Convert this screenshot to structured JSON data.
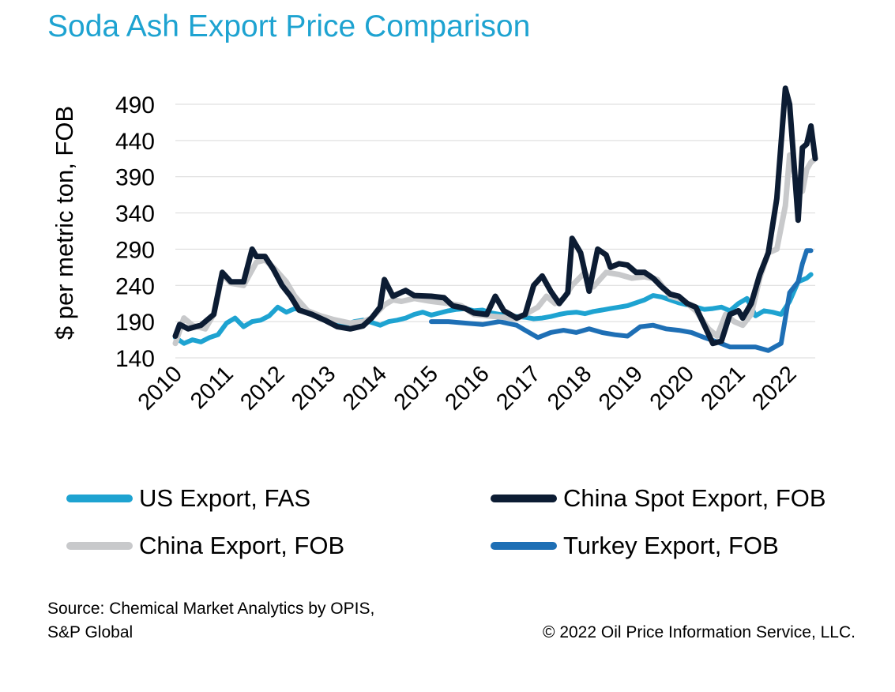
{
  "chart_data": {
    "type": "line",
    "title": "Soda Ash Export Price Comparison",
    "ylabel": "$ per metric ton, FOB",
    "xlabel": "",
    "ylim": [
      140,
      510
    ],
    "y_ticks": [
      140,
      190,
      240,
      290,
      340,
      390,
      440,
      490
    ],
    "xlim": [
      "2010-01",
      "2022-07"
    ],
    "x_tick_labels": [
      "2010",
      "2011",
      "2012",
      "2013",
      "2014",
      "2015",
      "2016",
      "2017",
      "2018",
      "2019",
      "2020",
      "2021",
      "2022"
    ],
    "grid": "horizontal",
    "legend_position": "bottom",
    "series": [
      {
        "name": "US Export, FAS",
        "color": "#1ea3d1",
        "points": [
          [
            "2010-01",
            168
          ],
          [
            "2010-03",
            160
          ],
          [
            "2010-05",
            165
          ],
          [
            "2010-07",
            162
          ],
          [
            "2010-09",
            168
          ],
          [
            "2010-11",
            172
          ],
          [
            "2011-01",
            188
          ],
          [
            "2011-03",
            195
          ],
          [
            "2011-05",
            183
          ],
          [
            "2011-07",
            190
          ],
          [
            "2011-09",
            192
          ],
          [
            "2011-11",
            198
          ],
          [
            "2012-01",
            210
          ],
          [
            "2012-03",
            203
          ],
          [
            "2012-05",
            208
          ],
          [
            "2012-07",
            205
          ],
          [
            "2012-09",
            202
          ],
          [
            "2012-11",
            198
          ],
          [
            "2013-01",
            193
          ],
          [
            "2013-03",
            190
          ],
          [
            "2013-05",
            186
          ],
          [
            "2013-07",
            190
          ],
          [
            "2013-09",
            192
          ],
          [
            "2013-11",
            189
          ],
          [
            "2014-01",
            185
          ],
          [
            "2014-03",
            190
          ],
          [
            "2014-05",
            192
          ],
          [
            "2014-07",
            195
          ],
          [
            "2014-09",
            200
          ],
          [
            "2014-11",
            203
          ],
          [
            "2015-01",
            199
          ],
          [
            "2015-03",
            202
          ],
          [
            "2015-05",
            205
          ],
          [
            "2015-07",
            207
          ],
          [
            "2015-09",
            208
          ],
          [
            "2015-11",
            205
          ],
          [
            "2016-01",
            206
          ],
          [
            "2016-03",
            202
          ],
          [
            "2016-05",
            200
          ],
          [
            "2016-07",
            198
          ],
          [
            "2016-09",
            197
          ],
          [
            "2016-11",
            196
          ],
          [
            "2017-01",
            194
          ],
          [
            "2017-03",
            195
          ],
          [
            "2017-05",
            197
          ],
          [
            "2017-07",
            200
          ],
          [
            "2017-09",
            202
          ],
          [
            "2017-11",
            203
          ],
          [
            "2018-01",
            201
          ],
          [
            "2018-03",
            204
          ],
          [
            "2018-05",
            206
          ],
          [
            "2018-07",
            208
          ],
          [
            "2018-09",
            210
          ],
          [
            "2018-11",
            212
          ],
          [
            "2019-01",
            216
          ],
          [
            "2019-03",
            220
          ],
          [
            "2019-05",
            226
          ],
          [
            "2019-07",
            224
          ],
          [
            "2019-09",
            220
          ],
          [
            "2019-11",
            216
          ],
          [
            "2020-01",
            213
          ],
          [
            "2020-03",
            210
          ],
          [
            "2020-05",
            207
          ],
          [
            "2020-07",
            208
          ],
          [
            "2020-09",
            210
          ],
          [
            "2020-11",
            205
          ],
          [
            "2021-01",
            215
          ],
          [
            "2021-03",
            222
          ],
          [
            "2021-05",
            198
          ],
          [
            "2021-07",
            205
          ],
          [
            "2021-09",
            203
          ],
          [
            "2021-11",
            200
          ],
          [
            "2022-01",
            218
          ],
          [
            "2022-03",
            245
          ],
          [
            "2022-05",
            250
          ],
          [
            "2022-06",
            255
          ]
        ]
      },
      {
        "name": "China Spot Export, FOB",
        "color": "#0c1c33",
        "points": [
          [
            "2010-01",
            170
          ],
          [
            "2010-02",
            186
          ],
          [
            "2010-04",
            180
          ],
          [
            "2010-07",
            185
          ],
          [
            "2010-10",
            200
          ],
          [
            "2010-12",
            258
          ],
          [
            "2011-02",
            245
          ],
          [
            "2011-05",
            245
          ],
          [
            "2011-07",
            290
          ],
          [
            "2011-08",
            280
          ],
          [
            "2011-10",
            280
          ],
          [
            "2011-12",
            262
          ],
          [
            "2012-02",
            240
          ],
          [
            "2012-04",
            225
          ],
          [
            "2012-06",
            206
          ],
          [
            "2012-09",
            200
          ],
          [
            "2012-12",
            192
          ],
          [
            "2013-03",
            183
          ],
          [
            "2013-06",
            180
          ],
          [
            "2013-09",
            184
          ],
          [
            "2013-11",
            195
          ],
          [
            "2014-01",
            210
          ],
          [
            "2014-02",
            248
          ],
          [
            "2014-04",
            225
          ],
          [
            "2014-07",
            233
          ],
          [
            "2014-09",
            226
          ],
          [
            "2015-01",
            225
          ],
          [
            "2015-04",
            223
          ],
          [
            "2015-06",
            212
          ],
          [
            "2015-09",
            208
          ],
          [
            "2015-11",
            202
          ],
          [
            "2016-02",
            200
          ],
          [
            "2016-04",
            225
          ],
          [
            "2016-06",
            205
          ],
          [
            "2016-09",
            195
          ],
          [
            "2016-11",
            200
          ],
          [
            "2017-01",
            240
          ],
          [
            "2017-03",
            253
          ],
          [
            "2017-05",
            232
          ],
          [
            "2017-07",
            215
          ],
          [
            "2017-09",
            230
          ],
          [
            "2017-10",
            305
          ],
          [
            "2017-12",
            285
          ],
          [
            "2018-02",
            232
          ],
          [
            "2018-04",
            290
          ],
          [
            "2018-06",
            282
          ],
          [
            "2018-07",
            265
          ],
          [
            "2018-09",
            270
          ],
          [
            "2018-11",
            268
          ],
          [
            "2019-01",
            258
          ],
          [
            "2019-03",
            258
          ],
          [
            "2019-05",
            250
          ],
          [
            "2019-07",
            238
          ],
          [
            "2019-09",
            228
          ],
          [
            "2019-11",
            225
          ],
          [
            "2020-01",
            215
          ],
          [
            "2020-03",
            210
          ],
          [
            "2020-05",
            185
          ],
          [
            "2020-07",
            160
          ],
          [
            "2020-09",
            163
          ],
          [
            "2020-11",
            200
          ],
          [
            "2021-01",
            205
          ],
          [
            "2021-02",
            195
          ],
          [
            "2021-04",
            215
          ],
          [
            "2021-06",
            255
          ],
          [
            "2021-08",
            285
          ],
          [
            "2021-10",
            360
          ],
          [
            "2021-12",
            512
          ],
          [
            "2022-01",
            490
          ],
          [
            "2022-03",
            330
          ],
          [
            "2022-04",
            430
          ],
          [
            "2022-05",
            435
          ],
          [
            "2022-06",
            460
          ],
          [
            "2022-07",
            415
          ]
        ]
      },
      {
        "name": "China Export, FOB",
        "color": "#c8c9cb",
        "points": [
          [
            "2010-01",
            160
          ],
          [
            "2010-03",
            195
          ],
          [
            "2010-05",
            185
          ],
          [
            "2010-08",
            180
          ],
          [
            "2010-10",
            200
          ],
          [
            "2010-12",
            255
          ],
          [
            "2011-02",
            243
          ],
          [
            "2011-05",
            240
          ],
          [
            "2011-08",
            272
          ],
          [
            "2011-10",
            275
          ],
          [
            "2011-12",
            265
          ],
          [
            "2012-03",
            245
          ],
          [
            "2012-05",
            225
          ],
          [
            "2012-08",
            205
          ],
          [
            "2012-11",
            198
          ],
          [
            "2013-02",
            193
          ],
          [
            "2013-06",
            188
          ],
          [
            "2013-09",
            190
          ],
          [
            "2013-11",
            195
          ],
          [
            "2014-02",
            213
          ],
          [
            "2014-04",
            220
          ],
          [
            "2014-06",
            218
          ],
          [
            "2014-09",
            222
          ],
          [
            "2015-01",
            218
          ],
          [
            "2015-05",
            215
          ],
          [
            "2015-08",
            212
          ],
          [
            "2015-11",
            200
          ],
          [
            "2016-02",
            198
          ],
          [
            "2016-06",
            196
          ],
          [
            "2016-09",
            194
          ],
          [
            "2016-11",
            200
          ],
          [
            "2017-02",
            210
          ],
          [
            "2017-04",
            225
          ],
          [
            "2017-06",
            215
          ],
          [
            "2017-08",
            222
          ],
          [
            "2017-10",
            240
          ],
          [
            "2018-01",
            258
          ],
          [
            "2018-03",
            238
          ],
          [
            "2018-06",
            258
          ],
          [
            "2018-09",
            255
          ],
          [
            "2018-12",
            250
          ],
          [
            "2019-03",
            252
          ],
          [
            "2019-06",
            248
          ],
          [
            "2019-09",
            225
          ],
          [
            "2019-12",
            220
          ],
          [
            "2020-03",
            205
          ],
          [
            "2020-06",
            180
          ],
          [
            "2020-08",
            170
          ],
          [
            "2020-10",
            200
          ],
          [
            "2020-12",
            190
          ],
          [
            "2021-02",
            185
          ],
          [
            "2021-04",
            200
          ],
          [
            "2021-06",
            250
          ],
          [
            "2021-08",
            285
          ],
          [
            "2021-10",
            290
          ],
          [
            "2021-12",
            350
          ],
          [
            "2022-01",
            420
          ],
          [
            "2022-03",
            375
          ],
          [
            "2022-04",
            370
          ],
          [
            "2022-05",
            400
          ],
          [
            "2022-06",
            410
          ],
          [
            "2022-07",
            415
          ]
        ]
      },
      {
        "name": "Turkey Export, FOB",
        "color": "#1e6fb5",
        "points": [
          [
            "2015-01",
            190
          ],
          [
            "2015-05",
            190
          ],
          [
            "2015-09",
            188
          ],
          [
            "2016-01",
            186
          ],
          [
            "2016-05",
            190
          ],
          [
            "2016-09",
            185
          ],
          [
            "2016-11",
            178
          ],
          [
            "2017-02",
            168
          ],
          [
            "2017-05",
            175
          ],
          [
            "2017-08",
            178
          ],
          [
            "2017-11",
            175
          ],
          [
            "2018-02",
            180
          ],
          [
            "2018-05",
            175
          ],
          [
            "2018-08",
            172
          ],
          [
            "2018-11",
            170
          ],
          [
            "2019-02",
            183
          ],
          [
            "2019-05",
            185
          ],
          [
            "2019-08",
            180
          ],
          [
            "2019-11",
            178
          ],
          [
            "2020-02",
            175
          ],
          [
            "2020-05",
            168
          ],
          [
            "2020-08",
            162
          ],
          [
            "2020-11",
            155
          ],
          [
            "2021-02",
            155
          ],
          [
            "2021-05",
            155
          ],
          [
            "2021-08",
            150
          ],
          [
            "2021-11",
            160
          ],
          [
            "2022-01",
            230
          ],
          [
            "2022-03",
            245
          ],
          [
            "2022-04",
            270
          ],
          [
            "2022-05",
            288
          ],
          [
            "2022-06",
            288
          ]
        ]
      }
    ]
  },
  "footer": {
    "source_line1": "Source: Chemical Market Analytics by OPIS,",
    "source_line2": "S&P Global",
    "copyright": "© 2022 Oil Price Information Service, LLC."
  }
}
